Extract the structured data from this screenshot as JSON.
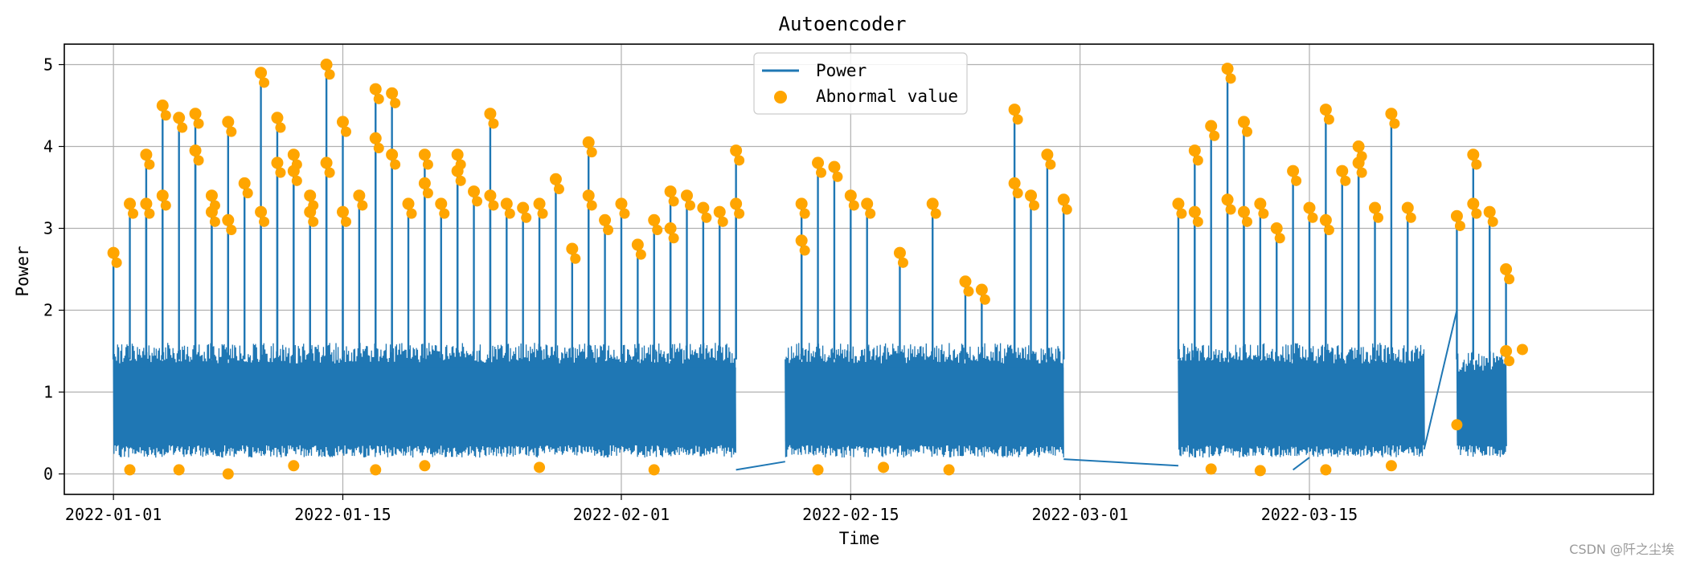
{
  "chart_data": {
    "type": "line",
    "title": "Autoencoder",
    "xlabel": "Time",
    "ylabel": "Power",
    "xlim": [
      "2021-12-29",
      "2022-04-05"
    ],
    "ylim": [
      -0.25,
      5.25
    ],
    "x_ticks": [
      "2022-01-01",
      "2022-01-15",
      "2022-02-01",
      "2022-02-15",
      "2022-03-01",
      "2022-03-15"
    ],
    "y_ticks": [
      0,
      1,
      2,
      3,
      4,
      5
    ],
    "grid": true,
    "legend_position": "top-center",
    "series": [
      {
        "name": "Power",
        "kind": "line",
        "color": "#1f77b4",
        "segments": [
          {
            "start": "2022-01-01",
            "end": "2022-02-08",
            "low": 0.2,
            "high": 1.6
          },
          {
            "start": "2022-02-11",
            "end": "2022-02-28",
            "low": 0.2,
            "high": 1.6
          },
          {
            "start": "2022-03-07",
            "end": "2022-03-22",
            "low": 0.2,
            "high": 1.6
          },
          {
            "start": "2022-03-24",
            "end": "2022-03-27",
            "low": 0.2,
            "high": 1.5
          }
        ],
        "connectors": [
          {
            "x": [
              "2022-02-08",
              "2022-02-11"
            ],
            "y": [
              0.05,
              0.15
            ]
          },
          {
            "x": [
              "2022-02-28",
              "2022-03-07"
            ],
            "y": [
              0.18,
              0.1
            ]
          },
          {
            "x": [
              "2022-03-14",
              "2022-03-15"
            ],
            "y": [
              0.05,
              0.2
            ]
          },
          {
            "x": [
              "2022-03-22",
              "2022-03-24"
            ],
            "y": [
              0.3,
              2.0
            ]
          }
        ],
        "spikes": [
          [
            "2022-01-01",
            2.7
          ],
          [
            "2022-01-02",
            3.3
          ],
          [
            "2022-01-03",
            3.9
          ],
          [
            "2022-01-03",
            3.3
          ],
          [
            "2022-01-04",
            4.5
          ],
          [
            "2022-01-04",
            3.4
          ],
          [
            "2022-01-05",
            4.35
          ],
          [
            "2022-01-06",
            4.4
          ],
          [
            "2022-01-06",
            3.95
          ],
          [
            "2022-01-07",
            3.4
          ],
          [
            "2022-01-07",
            3.2
          ],
          [
            "2022-01-08",
            4.3
          ],
          [
            "2022-01-08",
            3.1
          ],
          [
            "2022-01-09",
            3.55
          ],
          [
            "2022-01-10",
            3.2
          ],
          [
            "2022-01-10",
            4.9
          ],
          [
            "2022-01-11",
            3.8
          ],
          [
            "2022-01-11",
            4.35
          ],
          [
            "2022-01-12",
            3.9
          ],
          [
            "2022-01-12",
            3.7
          ],
          [
            "2022-01-13",
            3.2
          ],
          [
            "2022-01-13",
            3.4
          ],
          [
            "2022-01-14",
            5.0
          ],
          [
            "2022-01-14",
            3.8
          ],
          [
            "2022-01-15",
            4.3
          ],
          [
            "2022-01-15",
            3.2
          ],
          [
            "2022-01-16",
            3.4
          ],
          [
            "2022-01-17",
            4.7
          ],
          [
            "2022-01-17",
            4.1
          ],
          [
            "2022-01-18",
            3.9
          ],
          [
            "2022-01-18",
            4.65
          ],
          [
            "2022-01-19",
            3.3
          ],
          [
            "2022-01-20",
            3.55
          ],
          [
            "2022-01-20",
            3.9
          ],
          [
            "2022-01-21",
            3.3
          ],
          [
            "2022-01-22",
            3.9
          ],
          [
            "2022-01-22",
            3.7
          ],
          [
            "2022-01-23",
            3.45
          ],
          [
            "2022-01-24",
            4.4
          ],
          [
            "2022-01-24",
            3.4
          ],
          [
            "2022-01-25",
            3.3
          ],
          [
            "2022-01-26",
            3.25
          ],
          [
            "2022-01-27",
            3.3
          ],
          [
            "2022-01-28",
            3.6
          ],
          [
            "2022-01-29",
            2.75
          ],
          [
            "2022-01-30",
            4.05
          ],
          [
            "2022-01-30",
            3.4
          ],
          [
            "2022-01-31",
            3.1
          ],
          [
            "2022-02-01",
            3.3
          ],
          [
            "2022-02-02",
            2.8
          ],
          [
            "2022-02-03",
            3.1
          ],
          [
            "2022-02-04",
            3.45
          ],
          [
            "2022-02-04",
            3.0
          ],
          [
            "2022-02-05",
            3.4
          ],
          [
            "2022-02-06",
            3.25
          ],
          [
            "2022-02-07",
            3.2
          ],
          [
            "2022-02-08",
            3.95
          ],
          [
            "2022-02-08",
            3.3
          ],
          [
            "2022-02-12",
            3.3
          ],
          [
            "2022-02-12",
            2.85
          ],
          [
            "2022-02-13",
            3.8
          ],
          [
            "2022-02-14",
            3.75
          ],
          [
            "2022-02-15",
            3.4
          ],
          [
            "2022-02-16",
            3.3
          ],
          [
            "2022-02-18",
            2.7
          ],
          [
            "2022-02-20",
            3.3
          ],
          [
            "2022-02-22",
            2.35
          ],
          [
            "2022-02-23",
            2.25
          ],
          [
            "2022-02-25",
            4.45
          ],
          [
            "2022-02-25",
            3.55
          ],
          [
            "2022-02-26",
            3.4
          ],
          [
            "2022-02-27",
            3.9
          ],
          [
            "2022-02-28",
            3.35
          ],
          [
            "2022-03-07",
            3.3
          ],
          [
            "2022-03-08",
            3.2
          ],
          [
            "2022-03-08",
            3.95
          ],
          [
            "2022-03-09",
            4.25
          ],
          [
            "2022-03-10",
            4.95
          ],
          [
            "2022-03-10",
            3.35
          ],
          [
            "2022-03-11",
            3.2
          ],
          [
            "2022-03-11",
            4.3
          ],
          [
            "2022-03-12",
            3.3
          ],
          [
            "2022-03-13",
            3.0
          ],
          [
            "2022-03-14",
            3.7
          ],
          [
            "2022-03-15",
            3.25
          ],
          [
            "2022-03-16",
            4.45
          ],
          [
            "2022-03-16",
            3.1
          ],
          [
            "2022-03-17",
            3.7
          ],
          [
            "2022-03-18",
            4.0
          ],
          [
            "2022-03-18",
            3.8
          ],
          [
            "2022-03-19",
            3.25
          ],
          [
            "2022-03-20",
            4.4
          ],
          [
            "2022-03-21",
            3.25
          ],
          [
            "2022-03-24",
            3.15
          ],
          [
            "2022-03-25",
            3.9
          ],
          [
            "2022-03-25",
            3.3
          ],
          [
            "2022-03-26",
            3.2
          ],
          [
            "2022-03-27",
            2.5
          ],
          [
            "2022-03-27",
            1.5
          ]
        ]
      },
      {
        "name": "Abnormal value",
        "kind": "scatter",
        "color": "#ffa500",
        "low_points": [
          [
            "2022-01-02",
            0.05
          ],
          [
            "2022-01-05",
            0.05
          ],
          [
            "2022-01-08",
            0.0
          ],
          [
            "2022-01-12",
            0.1
          ],
          [
            "2022-01-17",
            0.05
          ],
          [
            "2022-01-20",
            0.1
          ],
          [
            "2022-01-27",
            0.08
          ],
          [
            "2022-02-03",
            0.05
          ],
          [
            "2022-02-13",
            0.05
          ],
          [
            "2022-02-17",
            0.08
          ],
          [
            "2022-02-21",
            0.05
          ],
          [
            "2022-03-09",
            0.06
          ],
          [
            "2022-03-12",
            0.04
          ],
          [
            "2022-03-16",
            0.05
          ],
          [
            "2022-03-20",
            0.1
          ],
          [
            "2022-03-24",
            0.6
          ],
          [
            "2022-03-28",
            1.52
          ]
        ]
      }
    ]
  },
  "watermark": "CSDN @阡之尘埃"
}
